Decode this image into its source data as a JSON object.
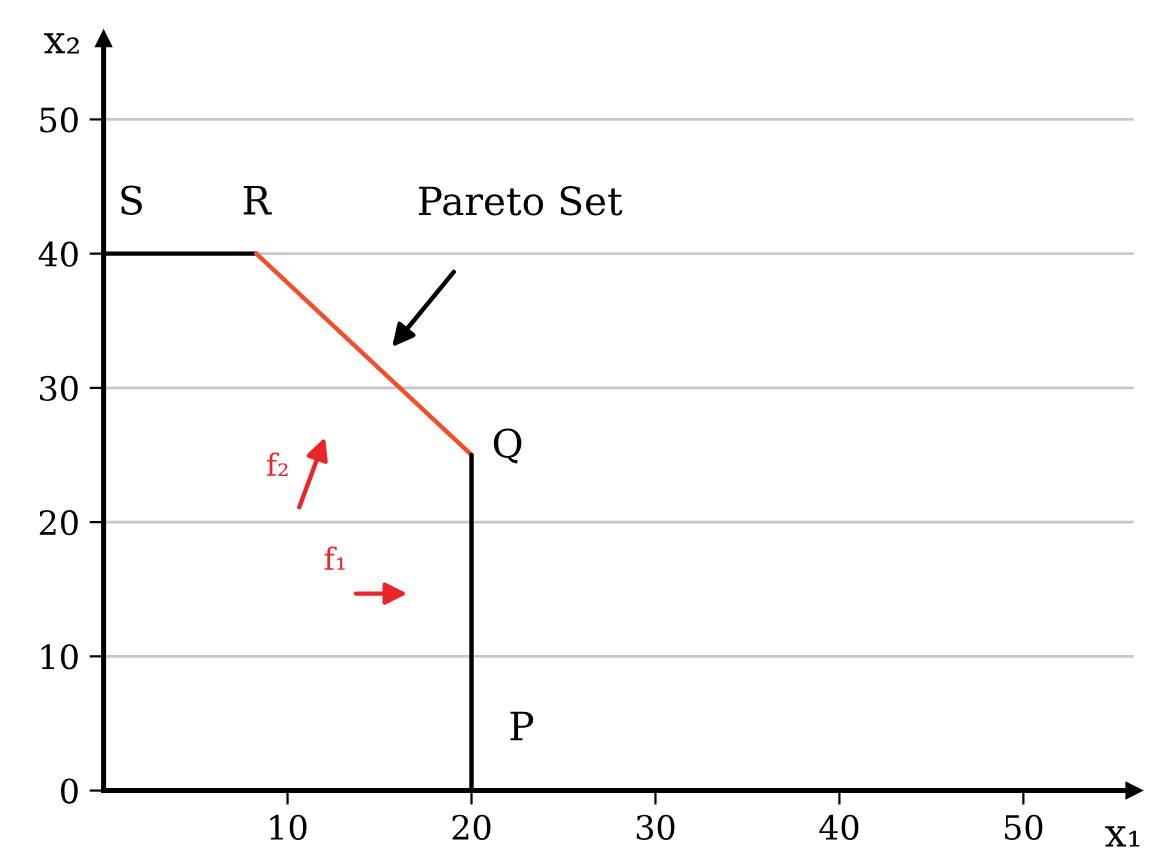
{
  "chart_data": {
    "type": "line",
    "xlabel": "x₁",
    "ylabel": "x₂",
    "xlim": [
      0,
      56
    ],
    "ylim": [
      0,
      56
    ],
    "xticks": [
      10,
      20,
      30,
      40,
      50
    ],
    "yticks": [
      0,
      10,
      20,
      30,
      40,
      50
    ],
    "grid": "y",
    "marker": "none",
    "line_style": "solid",
    "series": [
      {
        "color": "#000000",
        "x": [
          0,
          8.3
        ],
        "values": [
          40,
          40
        ]
      },
      {
        "color": "#f0502d",
        "x": [
          8.3,
          20
        ],
        "values": [
          40,
          25
        ]
      },
      {
        "color": "#000000",
        "x": [
          20,
          20
        ],
        "values": [
          25,
          0
        ]
      }
    ],
    "annotations": [
      {
        "text": "S",
        "x": 0,
        "y": 40
      },
      {
        "text": "R",
        "x": 8.3,
        "y": 40
      },
      {
        "text": "Q",
        "x": 20,
        "y": 25
      },
      {
        "text": "P",
        "x": 20,
        "y": 0
      },
      "Pareto Set",
      "f₂",
      "f₁"
    ]
  }
}
